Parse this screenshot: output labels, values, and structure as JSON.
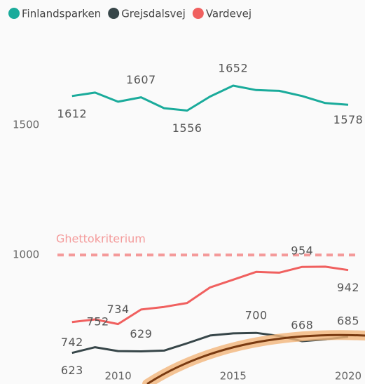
{
  "chart_data": {
    "type": "line",
    "x": [
      2008,
      2009,
      2010,
      2011,
      2012,
      2013,
      2014,
      2015,
      2016,
      2017,
      2018,
      2019,
      2020
    ],
    "series": [
      {
        "name": "Finlandsparken",
        "color": "#1aab9b",
        "values": [
          1612,
          1625,
          1590,
          1607,
          1565,
          1556,
          1610,
          1652,
          1635,
          1632,
          1612,
          1585,
          1578
        ]
      },
      {
        "name": "Grejsdalsvej",
        "color": "#374649",
        "values": [
          623,
          645,
          630,
          629,
          632,
          660,
          690,
          698,
          700,
          688,
          668,
          675,
          685
        ]
      },
      {
        "name": "Vardevej",
        "color": "#f0605f",
        "values": [
          742,
          752,
          734,
          790,
          800,
          815,
          875,
          905,
          935,
          932,
          954,
          955,
          942
        ]
      }
    ],
    "reference_line": {
      "label": "Ghettokriterium",
      "value": 1000,
      "color": "#f49a9a"
    },
    "xlim": [
      2007,
      2020.7
    ],
    "xticks": [
      2010,
      2015,
      2020
    ],
    "ylim": [
      560,
      1860
    ],
    "yticks": [
      1000,
      1500
    ],
    "legend": "top"
  }
}
